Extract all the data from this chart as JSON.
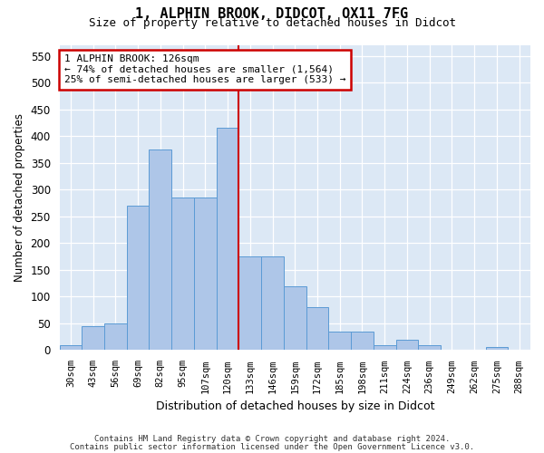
{
  "title": "1, ALPHIN BROOK, DIDCOT, OX11 7FG",
  "subtitle": "Size of property relative to detached houses in Didcot",
  "xlabel": "Distribution of detached houses by size in Didcot",
  "ylabel": "Number of detached properties",
  "categories": [
    "30sqm",
    "43sqm",
    "56sqm",
    "69sqm",
    "82sqm",
    "95sqm",
    "107sqm",
    "120sqm",
    "133sqm",
    "146sqm",
    "159sqm",
    "172sqm",
    "185sqm",
    "198sqm",
    "211sqm",
    "224sqm",
    "236sqm",
    "249sqm",
    "262sqm",
    "275sqm",
    "288sqm"
  ],
  "values": [
    10,
    45,
    50,
    270,
    375,
    285,
    285,
    415,
    175,
    175,
    120,
    80,
    35,
    35,
    10,
    20,
    10,
    0,
    0,
    5,
    0
  ],
  "bar_color": "#aec6e8",
  "bar_edge_color": "#5b9bd5",
  "property_line_color": "#cc0000",
  "annotation_line1": "1 ALPHIN BROOK: 126sqm",
  "annotation_line2": "← 74% of detached houses are smaller (1,564)",
  "annotation_line3": "25% of semi-detached houses are larger (533) →",
  "annotation_box_color": "#ffffff",
  "annotation_box_edge": "#cc0000",
  "footnote1": "Contains HM Land Registry data © Crown copyright and database right 2024.",
  "footnote2": "Contains public sector information licensed under the Open Government Licence v3.0.",
  "bg_color": "#dce8f5",
  "ylim": [
    0,
    570
  ],
  "yticks": [
    0,
    50,
    100,
    150,
    200,
    250,
    300,
    350,
    400,
    450,
    500,
    550
  ],
  "property_line_xindex": 7,
  "figwidth": 6.0,
  "figheight": 5.0,
  "dpi": 100
}
